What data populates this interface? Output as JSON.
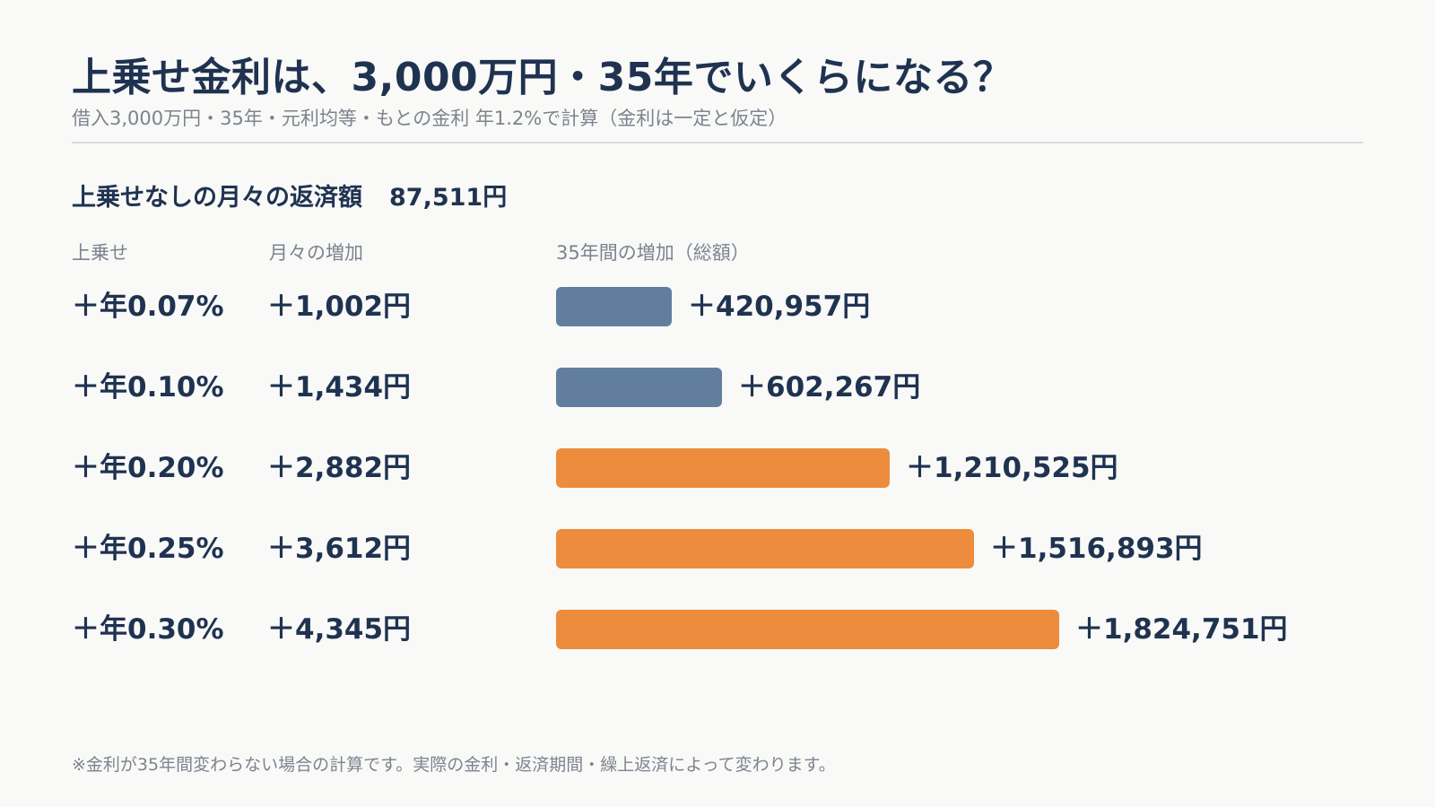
{
  "header": {
    "title": "上乗せ金利は、3,000万円・35年でいくらになる？",
    "subtitle": "借入3,000万円・35年・元利均等・もとの金利 年1.2%で計算（金利は一定と仮定）"
  },
  "baseline": {
    "label": "上乗せなしの月々の返済額",
    "value": "87,511円"
  },
  "columns": {
    "rate": "上乗せ",
    "monthly": "月々の増加",
    "total": "35年間の増加（総額）"
  },
  "colors": {
    "low": "#627e9e",
    "high": "#ec8c3c",
    "text": "#1f3350",
    "muted": "#7c848e"
  },
  "chart_data": {
    "type": "bar",
    "orientation": "horizontal",
    "categories": [
      "＋年0.07%",
      "＋年0.10%",
      "＋年0.20%",
      "＋年0.25%",
      "＋年0.30%"
    ],
    "monthly_labels": [
      "＋1,002円",
      "＋1,434円",
      "＋2,882円",
      "＋3,612円",
      "＋4,345円"
    ],
    "values": [
      420957,
      602267,
      1210525,
      1516893,
      1824751
    ],
    "value_labels": [
      "＋420,957円",
      "＋602,267円",
      "＋1,210,525円",
      "＋1,516,893円",
      "＋1,824,751円"
    ],
    "bar_colors": [
      "#627e9e",
      "#627e9e",
      "#ec8c3c",
      "#ec8c3c",
      "#ec8c3c"
    ],
    "xlim": [
      0,
      1824751
    ]
  },
  "footnote": "※金利が35年間変わらない場合の計算です。実際の金利・返済期間・繰上返済によって変わります。"
}
